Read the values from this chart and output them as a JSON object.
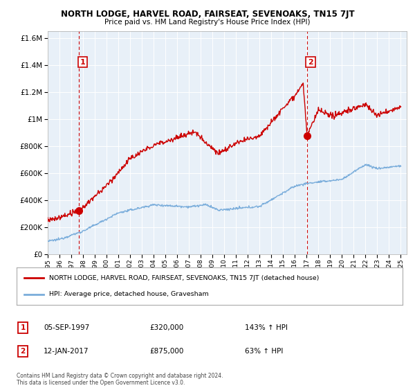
{
  "title": "NORTH LODGE, HARVEL ROAD, FAIRSEAT, SEVENOAKS, TN15 7JT",
  "subtitle": "Price paid vs. HM Land Registry's House Price Index (HPI)",
  "legend_line1": "NORTH LODGE, HARVEL ROAD, FAIRSEAT, SEVENOAKS, TN15 7JT (detached house)",
  "legend_line2": "HPI: Average price, detached house, Gravesham",
  "footer": "Contains HM Land Registry data © Crown copyright and database right 2024.\nThis data is licensed under the Open Government Licence v3.0.",
  "sale1_label": "1",
  "sale1_date": "05-SEP-1997",
  "sale1_price": "£320,000",
  "sale1_hpi": "143% ↑ HPI",
  "sale1_year": 1997.67,
  "sale1_value": 320000,
  "sale2_label": "2",
  "sale2_date": "12-JAN-2017",
  "sale2_price": "£875,000",
  "sale2_hpi": "63% ↑ HPI",
  "sale2_year": 2017.04,
  "sale2_value": 875000,
  "ylim": [
    0,
    1650000
  ],
  "xlim": [
    1995,
    2025.5
  ],
  "red_color": "#cc0000",
  "blue_color": "#7aaddb",
  "plot_bg_color": "#e8f0f8",
  "background_color": "#ffffff",
  "grid_color": "#ffffff"
}
